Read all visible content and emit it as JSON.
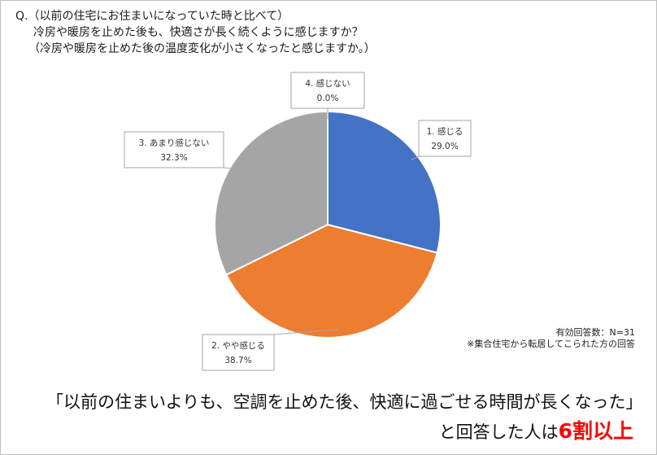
{
  "question": {
    "line1": "Q.（以前の住宅にお住まいになっていた時と比べて）",
    "line2": "冷房や暖房を止めた後も、快適さが長く続くように感じますか？",
    "line3": "（冷房や暖房を止めた後の温度変化が小さくなったと感じますか。）"
  },
  "notes": {
    "respondents": "有効回答数：N=31",
    "source": "※集合住宅から転居してこられた方の回答"
  },
  "conclusion": {
    "line1": "「以前の住まいよりも、空調を止めた後、快適に過ごせる時間が長くなった」",
    "line2_prefix": "と回答した人は",
    "line2_highlight": "6割以上"
  },
  "chart_data": {
    "type": "pie",
    "start_angle": "12 o'clock",
    "direction": "clockwise",
    "slices": [
      {
        "label": "1. 感じる",
        "value": 29.0,
        "value_label": "29.0%",
        "color": "#4472c4"
      },
      {
        "label": "2. やや感じる",
        "value": 38.7,
        "value_label": "38.7%",
        "color": "#ed7d31"
      },
      {
        "label": "3. あまり感じない",
        "value": 32.3,
        "value_label": "32.3%",
        "color": "#a5a5a5"
      },
      {
        "label": "4. 感じない",
        "value": 0.0,
        "value_label": "0.0%",
        "color": "#ffc000"
      }
    ]
  }
}
